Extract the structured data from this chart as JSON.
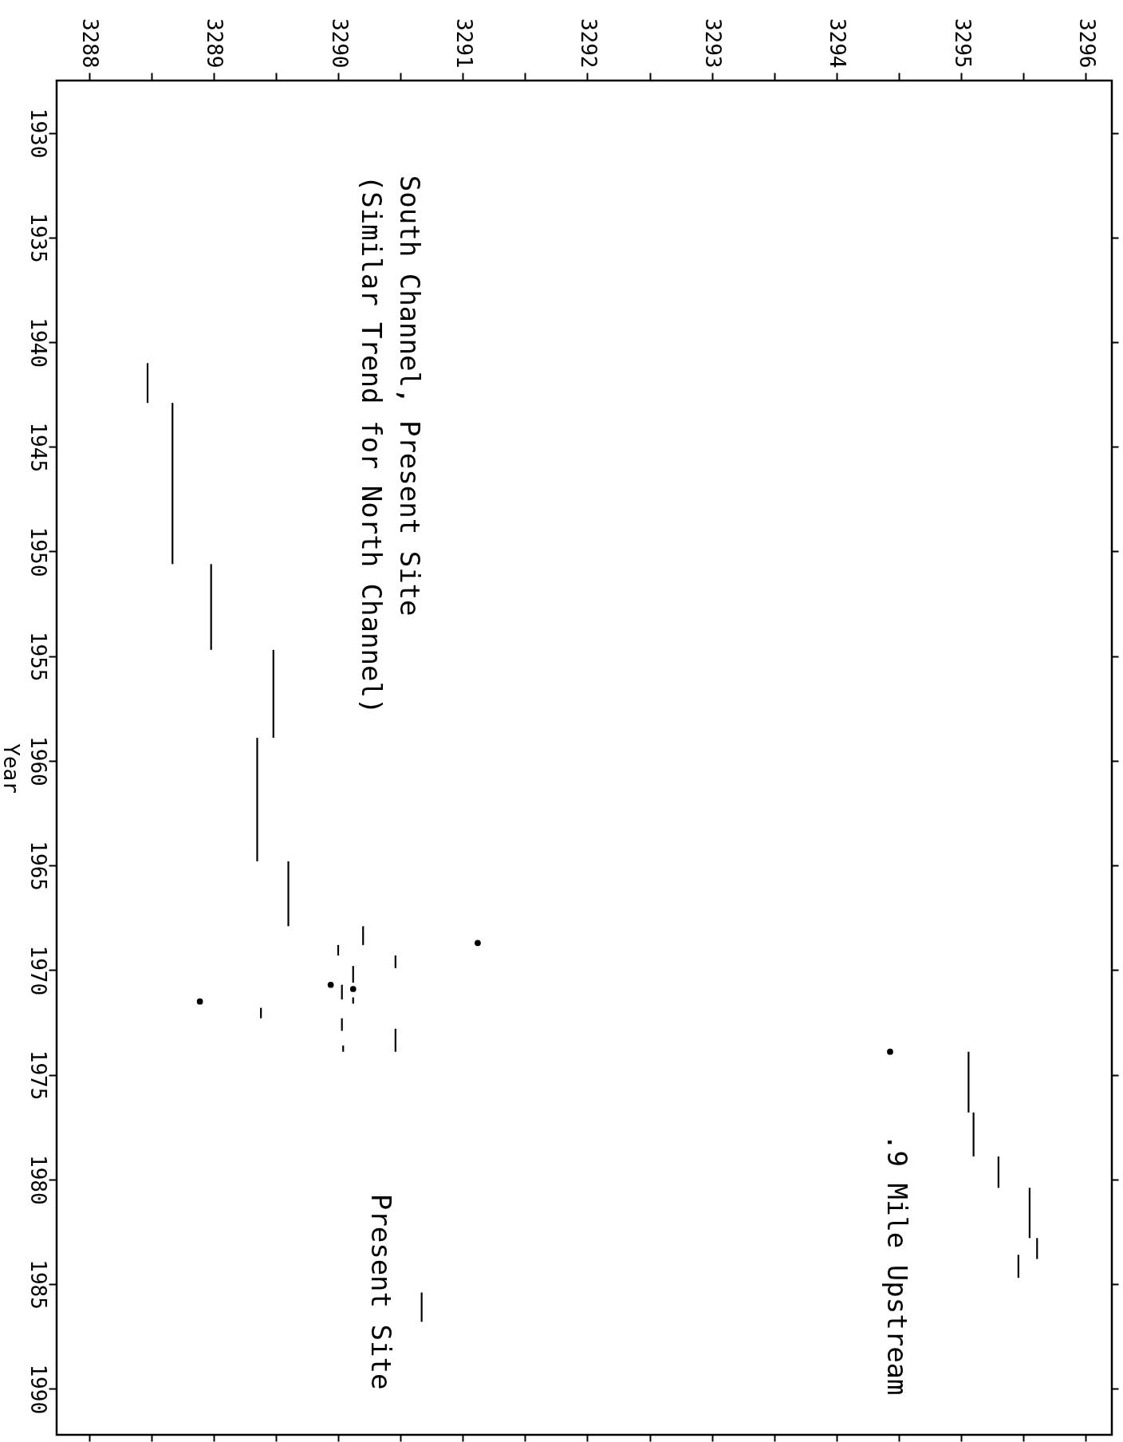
{
  "chart_data": {
    "type": "line",
    "ylabel": "Year",
    "annotations": [
      "South Channel, Present Site",
      "(Similar Trend for North Channel)",
      ".9 Mile Upstream",
      "Present Site"
    ],
    "xlim": [
      3287.74,
      3296.21
    ],
    "xticks": [
      3288,
      {
        "value": 3288.5,
        "label": null
      },
      3289,
      {
        "value": 3289.5,
        "label": null
      },
      3290,
      {
        "value": 3290.5,
        "label": null
      },
      3291,
      {
        "value": 3291.5,
        "label": null
      },
      3292,
      {
        "value": 3292.5,
        "label": null
      },
      3293,
      {
        "value": 3293.5,
        "label": null
      },
      3294,
      {
        "value": 3294.5,
        "label": null
      },
      3295,
      {
        "value": 3295.5,
        "label": null
      },
      3296
    ],
    "ylim": [
      1992.2,
      1927.5
    ],
    "yticks": [
      1930,
      1935,
      1940,
      1945,
      1950,
      1955,
      1960,
      1965,
      1970,
      1975,
      1980,
      1985,
      1990
    ],
    "grid": false,
    "marker": "none",
    "line_style": "solid",
    "series": [
      {
        "color": "#000000",
        "x": [
          3288.47,
          3288.47
        ],
        "values": [
          1941.0,
          1942.9
        ]
      },
      {
        "color": "#000000",
        "x": [
          3288.67,
          3288.67
        ],
        "values": [
          1942.9,
          1950.6
        ]
      },
      {
        "color": "#000000",
        "x": [
          3288.98,
          3288.98
        ],
        "values": [
          1950.6,
          1954.7
        ]
      },
      {
        "color": "#000000",
        "x": [
          3289.48,
          3289.48
        ],
        "values": [
          1954.7,
          1958.9
        ]
      },
      {
        "color": "#000000",
        "x": [
          3289.35,
          3289.35
        ],
        "values": [
          1958.9,
          1964.8
        ]
      },
      {
        "color": "#000000",
        "x": [
          3289.6,
          3289.6
        ],
        "values": [
          1964.8,
          1967.9
        ]
      },
      {
        "color": "#000000",
        "x": [
          3290.2,
          3290.2
        ],
        "values": [
          1967.9,
          1968.8
        ]
      },
      {
        "color": "#000000",
        "x": [
          3290.0,
          3290.0
        ],
        "values": [
          1968.8,
          1969.3
        ]
      },
      {
        "color": "#000000",
        "x": [
          3290.46,
          3290.46
        ],
        "values": [
          1969.3,
          1969.9
        ]
      },
      {
        "color": "#000000",
        "x": [
          3290.12,
          3290.12
        ],
        "values": [
          1969.8,
          1970.6
        ]
      },
      {
        "color": "#000000",
        "x": [
          3290.03,
          3290.03
        ],
        "values": [
          1970.7,
          1971.4
        ]
      },
      {
        "color": "#000000",
        "x": [
          3290.12,
          3290.12
        ],
        "values": [
          1971.3,
          1971.6
        ]
      },
      {
        "color": "#000000",
        "x": [
          3289.38,
          3289.38
        ],
        "values": [
          1971.8,
          1972.3
        ]
      },
      {
        "color": "#000000",
        "x": [
          3290.03,
          3290.03
        ],
        "values": [
          1972.3,
          1972.9
        ]
      },
      {
        "color": "#000000",
        "x": [
          3290.46,
          3290.46
        ],
        "values": [
          1972.8,
          1973.9
        ]
      },
      {
        "color": "#000000",
        "x": [
          3290.04,
          3290.04
        ],
        "values": [
          1973.6,
          1973.9
        ]
      },
      {
        "color": "#000000",
        "x": [
          3290.67,
          3290.67
        ],
        "values": [
          1985.4,
          1986.8
        ]
      },
      {
        "color": "#000000",
        "x": [
          3295.06,
          3295.06
        ],
        "values": [
          1973.9,
          1976.8
        ]
      },
      {
        "color": "#000000",
        "x": [
          3295.1,
          3295.1
        ],
        "values": [
          1976.8,
          1978.9
        ]
      },
      {
        "color": "#000000",
        "x": [
          3295.3,
          3295.3
        ],
        "values": [
          1978.9,
          1980.4
        ]
      },
      {
        "color": "#000000",
        "x": [
          3295.55,
          3295.55
        ],
        "values": [
          1980.4,
          1982.8
        ]
      },
      {
        "color": "#000000",
        "x": [
          3295.61,
          3295.61
        ],
        "values": [
          1982.8,
          1983.8
        ]
      },
      {
        "color": "#000000",
        "x": [
          3295.46,
          3295.46
        ],
        "values": [
          1983.6,
          1984.7
        ]
      },
      {
        "type": "scatter",
        "marker": "circle",
        "color": "#000000",
        "x": [
          3291.12,
          3289.94,
          3290.12,
          3288.89,
          3294.43
        ],
        "values": [
          1968.7,
          1970.7,
          1970.9,
          1971.5,
          1973.9
        ]
      }
    ]
  }
}
